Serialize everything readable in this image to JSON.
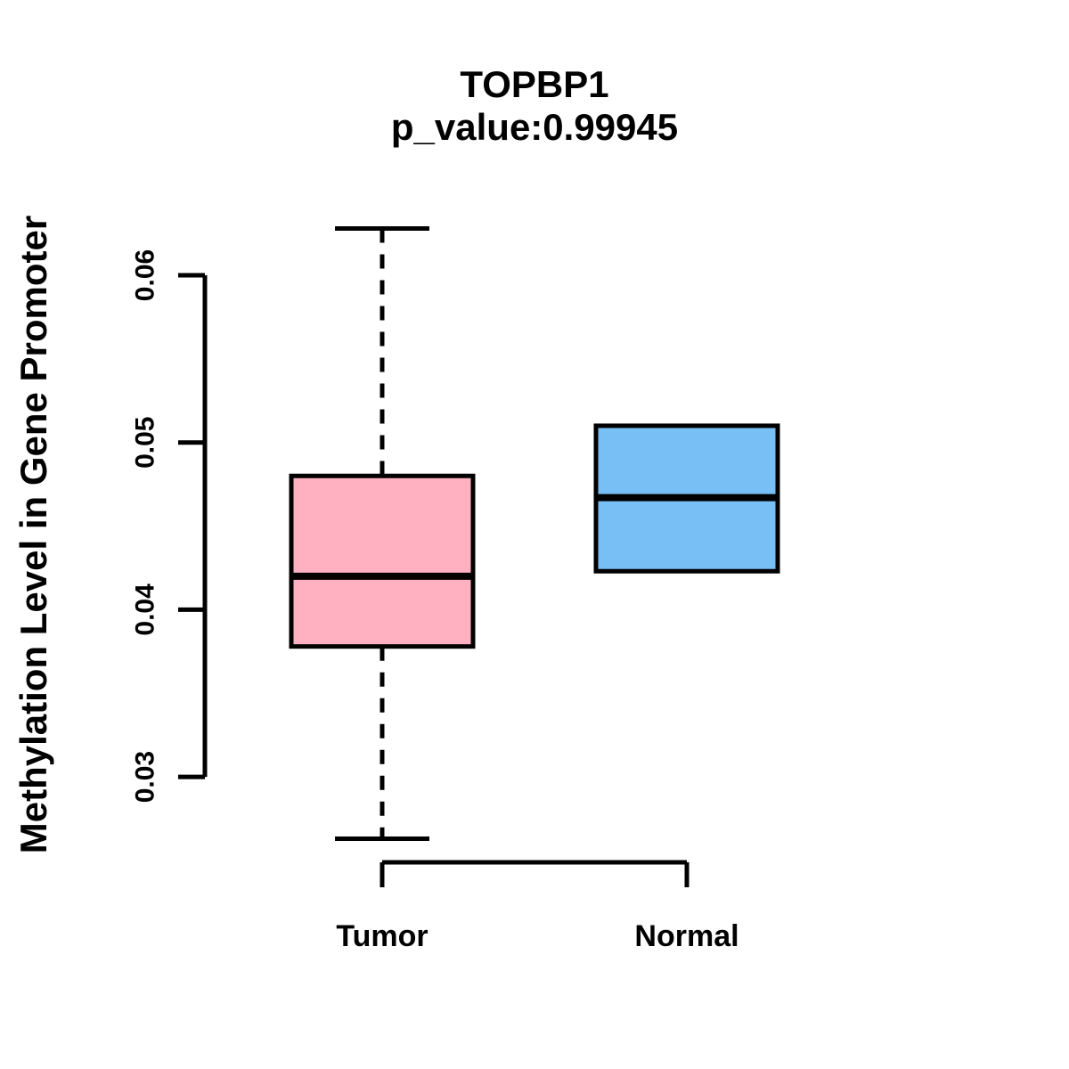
{
  "header": {
    "title": "TOPBP1",
    "subtitle": "p_value:0.99945"
  },
  "axes": {
    "y_label": "Methylation Level in Gene Promoter",
    "y_tick_labels": [
      "0.03",
      "0.04",
      "0.05",
      "0.06"
    ],
    "y_tick_values": [
      0.03,
      0.04,
      0.05,
      0.06
    ]
  },
  "colors": {
    "tumor_fill": "#FFB1C1",
    "normal_fill": "#78BFF5",
    "line": "#000000",
    "background": "#FFFFFF"
  },
  "chart_data": {
    "type": "boxplot",
    "title": "TOPBP1",
    "subtitle": "p_value:0.99945",
    "ylabel": "Methylation Level in Gene Promoter",
    "categories": [
      "Tumor",
      "Normal"
    ],
    "ytick_values": [
      0.03,
      0.04,
      0.05,
      0.06
    ],
    "ytick_labels": [
      "0.03",
      "0.04",
      "0.05",
      "0.06"
    ],
    "ylim": [
      0.025,
      0.064
    ],
    "grid": false,
    "legend": "none",
    "series": [
      {
        "name": "Tumor",
        "fill": "#FFB1C1",
        "lower_whisker": 0.0263,
        "q1": 0.0378,
        "median": 0.042,
        "q3": 0.048,
        "upper_whisker": 0.0628,
        "has_whiskers": true
      },
      {
        "name": "Normal",
        "fill": "#78BFF5",
        "lower_whisker": 0.0423,
        "q1": 0.0423,
        "median": 0.0467,
        "q3": 0.051,
        "upper_whisker": 0.051,
        "has_whiskers": false
      }
    ]
  }
}
